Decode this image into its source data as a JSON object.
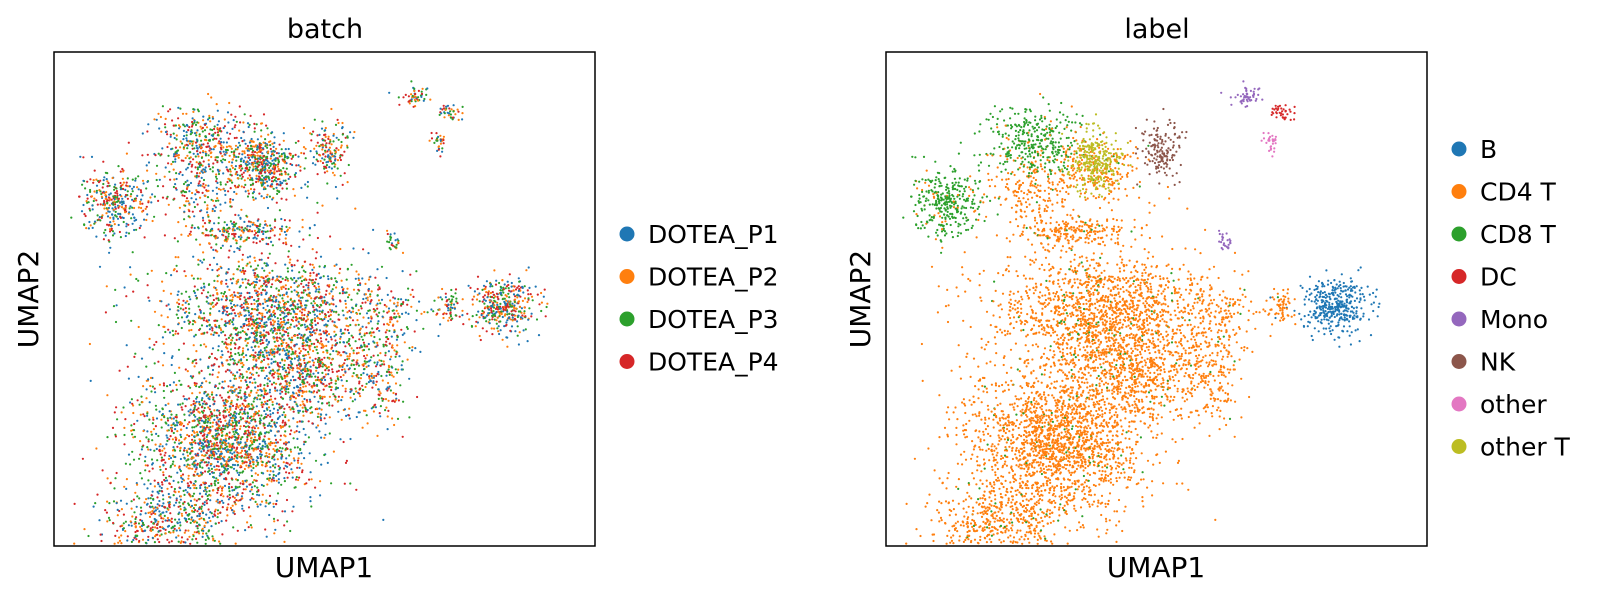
{
  "chart_data": [
    {
      "type": "scatter",
      "title": "batch",
      "xlabel": "UMAP1",
      "ylabel": "UMAP2",
      "grid": false,
      "ticks": false,
      "legend_position": "right",
      "legend": [
        {
          "name": "DOTEA_P1",
          "color": "#1f77b4"
        },
        {
          "name": "DOTEA_P2",
          "color": "#ff7f0e"
        },
        {
          "name": "DOTEA_P3",
          "color": "#2ca02c"
        },
        {
          "name": "DOTEA_P4",
          "color": "#d62728"
        }
      ]
    },
    {
      "type": "scatter",
      "title": "label",
      "xlabel": "UMAP1",
      "ylabel": "UMAP2",
      "grid": false,
      "ticks": false,
      "legend_position": "right",
      "legend": [
        {
          "name": "B",
          "color": "#1f77b4"
        },
        {
          "name": "CD4 T",
          "color": "#ff7f0e"
        },
        {
          "name": "CD8 T",
          "color": "#2ca02c"
        },
        {
          "name": "DC",
          "color": "#d62728"
        },
        {
          "name": "Mono",
          "color": "#9467bd"
        },
        {
          "name": "NK",
          "color": "#8c564b"
        },
        {
          "name": "other",
          "color": "#e377c2"
        },
        {
          "name": "other T",
          "color": "#bcbd22"
        }
      ]
    }
  ]
}
